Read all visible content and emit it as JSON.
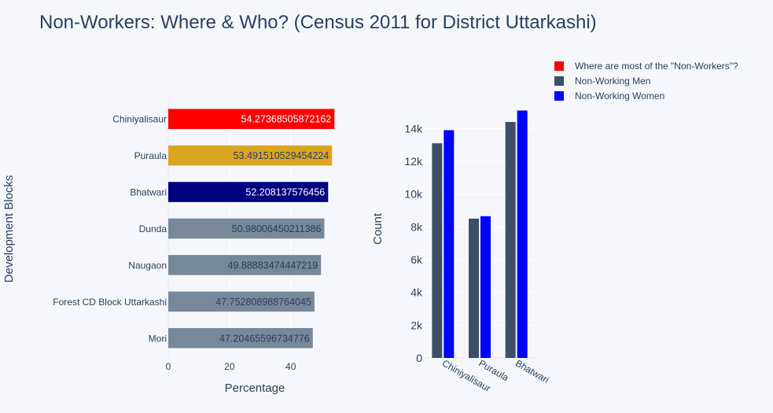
{
  "title": "Non-Workers: Where & Who? (Census 2011 for District Uttarkashi)",
  "legend": [
    {
      "label": "Where are most of the \"Non-Workers\"?",
      "color": "#ff0000"
    },
    {
      "label": "Non-Working Men",
      "color": "#3b5068"
    },
    {
      "label": "Non-Working Women",
      "color": "#0000ff"
    }
  ],
  "chart_data": [
    {
      "type": "bar",
      "orientation": "horizontal",
      "xlabel": "Percentage",
      "ylabel": "Development Blocks",
      "xlim": [
        0,
        56
      ],
      "xticks": [
        "0",
        "20",
        "40"
      ],
      "categories": [
        "Chiniyalisaur",
        "Puraula",
        "Bhatwari",
        "Dunda",
        "Naugaon",
        "Forest CD Block Uttarkashi",
        "Mori"
      ],
      "values": [
        54.27368505872162,
        53.491510529454224,
        52.208137576456,
        50.98006450211386,
        49.88883474447219,
        47.752808988764045,
        47.20465596734776
      ],
      "labels": [
        "54.27368505872162",
        "53.491510529454224",
        "52.208137576456",
        "50.98006450211386",
        "49.88883474447219",
        "47.752808988764045",
        "47.20465596734776"
      ],
      "colors": [
        "#ff0000",
        "#daa520",
        "#000080",
        "#778899",
        "#778899",
        "#778899",
        "#778899"
      ]
    },
    {
      "type": "bar",
      "orientation": "vertical",
      "ylabel": "Count",
      "ylim": [
        0,
        15700
      ],
      "yticks": [
        "0",
        "2k",
        "4k",
        "6k",
        "8k",
        "10k",
        "12k",
        "14k"
      ],
      "categories": [
        "Chiniyalisaur",
        "Puraula",
        "Bhatwari"
      ],
      "series": [
        {
          "name": "Non-Working Men",
          "values": [
            13100,
            8500,
            14400
          ],
          "color": "#3b5068"
        },
        {
          "name": "Non-Working Women",
          "values": [
            13900,
            8650,
            15100
          ],
          "color": "#0000ff"
        }
      ]
    }
  ]
}
